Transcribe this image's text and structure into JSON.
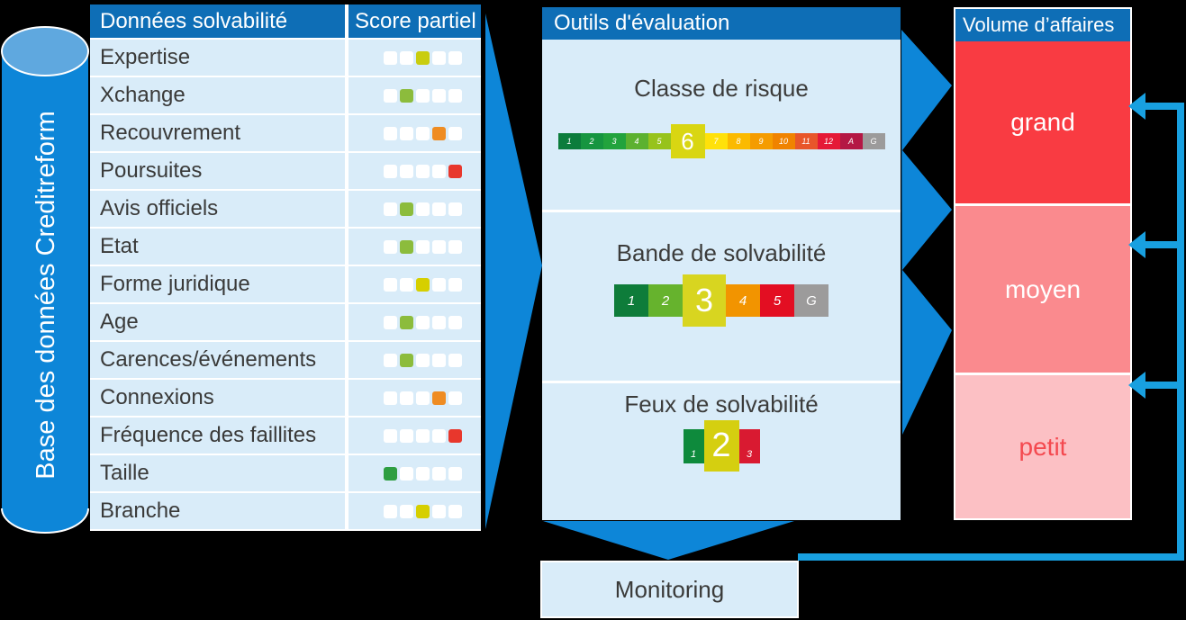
{
  "colors": {
    "header_blue": "#0e6eb6",
    "panel_bg": "#d9ecf9",
    "arrow_blue": "#0d86d8",
    "cylinder_blue": "#0d86d8",
    "cylinder_top": "#5fa8df",
    "loop_blue": "#18a0e0",
    "text_dark": "#3a3a39"
  },
  "database": {
    "label": "Base des données Creditreform"
  },
  "table": {
    "headers": {
      "col1": "Données solvabilité",
      "col2": "Score partiel"
    },
    "squares_total": 5,
    "rows": [
      {
        "label": "Expertise",
        "active": 3,
        "color": "#c9cd0f"
      },
      {
        "label": "Xchange",
        "active": 2,
        "color": "#8cbc3c"
      },
      {
        "label": "Recouvrement",
        "active": 4,
        "color": "#ef8c22"
      },
      {
        "label": "Poursuites",
        "active": 5,
        "color": "#e8372c"
      },
      {
        "label": "Avis officiels",
        "active": 2,
        "color": "#8cbc3c"
      },
      {
        "label": "Etat",
        "active": 2,
        "color": "#8cbc3c"
      },
      {
        "label": "Forme juridique",
        "active": 3,
        "color": "#d6cf00"
      },
      {
        "label": "Age",
        "active": 2,
        "color": "#8cbc3c"
      },
      {
        "label": "Carences/événements",
        "active": 2,
        "color": "#8cbc3c"
      },
      {
        "label": "Connexions",
        "active": 4,
        "color": "#ef8c22"
      },
      {
        "label": "Fréquence des faillites",
        "active": 5,
        "color": "#e8372c"
      },
      {
        "label": "Taille",
        "active": 1,
        "color": "#2e9e41"
      },
      {
        "label": "Branche",
        "active": 3,
        "color": "#d6cf00"
      }
    ]
  },
  "evaluation": {
    "title": "Outils d'évaluation",
    "sections": [
      {
        "title": "Classe de risque",
        "highlighted_value": "6",
        "segments": [
          {
            "label": "1",
            "color": "#0c7c3c"
          },
          {
            "label": "2",
            "color": "#169540"
          },
          {
            "label": "3",
            "color": "#22a33d"
          },
          {
            "label": "4",
            "color": "#5cb130"
          },
          {
            "label": "5",
            "color": "#97c31c"
          },
          {
            "label": "6",
            "color": "#d9d612",
            "highlight": true
          },
          {
            "label": "7",
            "color": "#ffe10a"
          },
          {
            "label": "8",
            "color": "#fbba00"
          },
          {
            "label": "9",
            "color": "#f59c00"
          },
          {
            "label": "10",
            "color": "#f08300"
          },
          {
            "label": "11",
            "color": "#e8562a"
          },
          {
            "label": "12",
            "color": "#e51937"
          },
          {
            "label": "A",
            "color": "#b41744"
          },
          {
            "label": "G",
            "color": "#9c9b9b"
          }
        ]
      },
      {
        "title": "Bande de solvabilité",
        "highlighted_value": "3",
        "segments": [
          {
            "label": "1",
            "color": "#0e7c3a"
          },
          {
            "label": "2",
            "color": "#66b32d"
          },
          {
            "label": "3",
            "color": "#d8d520",
            "highlight": true
          },
          {
            "label": "4",
            "color": "#f29400"
          },
          {
            "label": "5",
            "color": "#e30e22"
          },
          {
            "label": "G",
            "color": "#9c9b9b"
          }
        ]
      },
      {
        "title": "Feux de solvabilité",
        "highlighted_value": "2",
        "segments": [
          {
            "label": "1",
            "color": "#0e8a3c"
          },
          {
            "label": "2",
            "color": "#d5cf10",
            "highlight": true
          },
          {
            "label": "3",
            "color": "#d91a31"
          }
        ]
      }
    ]
  },
  "volume": {
    "title": "Volume d’affaires",
    "sections": [
      {
        "label": "grand",
        "bg": "#f93b42",
        "text_color": "#ffffff"
      },
      {
        "label": "moyen",
        "bg": "#fa8a8e",
        "text_color": "#ffffff"
      },
      {
        "label": "petit",
        "bg": "#fcc0c4",
        "text_color": "#f4494f"
      }
    ]
  },
  "monitoring": {
    "label": "Monitoring"
  }
}
